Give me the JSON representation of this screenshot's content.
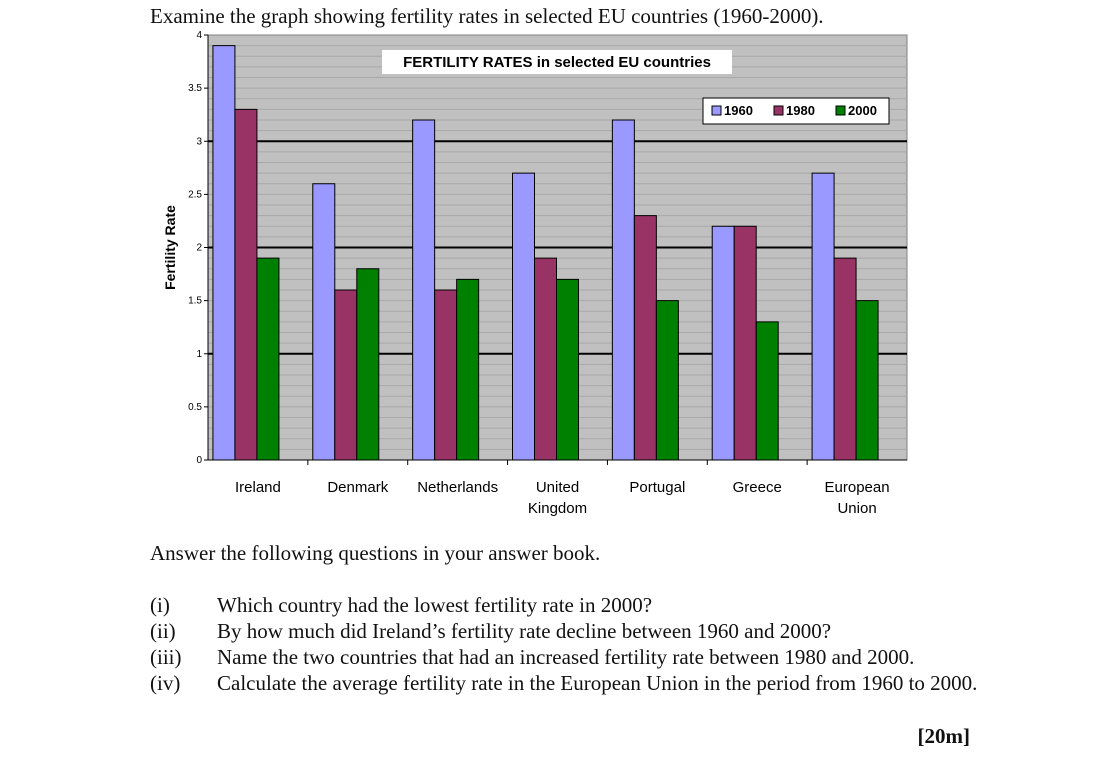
{
  "page": {
    "heading": "Examine the graph showing fertility rates in selected EU countries (1960-2000).",
    "answer_intro": "Answer the following questions in your answer book.",
    "questions": [
      {
        "num": "(i)",
        "text": "Which country had the lowest fertility rate in 2000?"
      },
      {
        "num": "(ii)",
        "text": "By how much did Ireland’s fertility rate decline between 1960 and 2000?"
      },
      {
        "num": "(iii)",
        "text": "Name the two countries that had an increased fertility rate between 1980 and 2000."
      },
      {
        "num": "(iv)",
        "text": "Calculate the average fertility rate in the European Union in the period from 1960 to 2000."
      }
    ],
    "marks": "[20m]"
  },
  "chart_data": {
    "type": "bar",
    "title": "FERTILITY RATES in selected EU countries",
    "xlabel": "",
    "ylabel": "Fertility Rate",
    "ylim": [
      0,
      4
    ],
    "yticks": [
      "0",
      "0.5",
      "1",
      "1.5",
      "2",
      "2.5",
      "3",
      "3.5",
      "4"
    ],
    "grid": true,
    "legend_position": "top-right",
    "categories": [
      [
        "Ireland"
      ],
      [
        "Denmark"
      ],
      [
        "Netherlands"
      ],
      [
        "United",
        "Kingdom"
      ],
      [
        "Portugal"
      ],
      [
        "Greece"
      ],
      [
        "European",
        "Union"
      ]
    ],
    "series": [
      {
        "name": "1960",
        "color": "#9999ff",
        "values": [
          3.9,
          2.6,
          3.2,
          2.7,
          3.2,
          2.2,
          2.7
        ]
      },
      {
        "name": "1980",
        "color": "#993366",
        "values": [
          3.3,
          1.6,
          1.6,
          1.9,
          2.3,
          2.2,
          1.9
        ]
      },
      {
        "name": "2000",
        "color": "#008000",
        "values": [
          1.9,
          1.8,
          1.7,
          1.7,
          1.5,
          1.3,
          1.5
        ]
      }
    ],
    "plot_background": "#c0c0c0"
  }
}
